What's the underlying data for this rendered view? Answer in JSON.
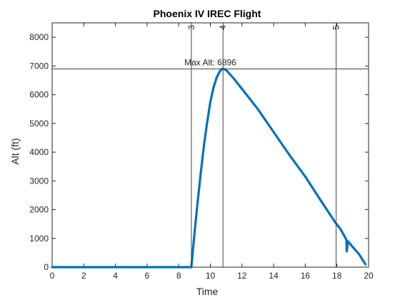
{
  "chart_data": {
    "type": "line",
    "title": "Phoenix IV IREC Flight",
    "xlabel": "Time",
    "ylabel": "Alt (ft)",
    "xlim": [
      0,
      20
    ],
    "ylim": [
      0,
      8500
    ],
    "xticks": [
      0,
      2,
      4,
      6,
      8,
      10,
      12,
      14,
      16,
      18,
      20
    ],
    "yticks": [
      0,
      1000,
      2000,
      3000,
      4000,
      5000,
      6000,
      7000,
      8000
    ],
    "grid": false,
    "legend": "none",
    "colors": {
      "line": "#0072BD",
      "axis": "#262626",
      "event_line": "#444444",
      "background": "#ffffff"
    },
    "series": [
      {
        "values_x": [
          0,
          2,
          4,
          6,
          8,
          8.6,
          8.8,
          9.0,
          9.2,
          9.4,
          9.6,
          9.8,
          10.0,
          10.2,
          10.4,
          10.6,
          10.75,
          10.85,
          11.0,
          11.5,
          12.0,
          13.0,
          14.0,
          15.0,
          16.0,
          17.0,
          17.9,
          18.2,
          18.45,
          18.55,
          18.6,
          18.62,
          18.7,
          19.0,
          19.4,
          19.8
        ],
        "values_y": [
          0,
          0,
          0,
          0,
          0,
          0,
          0,
          1200,
          2300,
          3300,
          4250,
          5050,
          5750,
          6250,
          6600,
          6820,
          6896,
          6896,
          6860,
          6550,
          6200,
          5500,
          4700,
          3900,
          3150,
          2300,
          1550,
          1350,
          1100,
          1000,
          950,
          550,
          900,
          700,
          450,
          100
        ]
      }
    ],
    "max_line": {
      "y": 6896,
      "label": "Max Alt: 6896"
    },
    "event_lines": [
      {
        "x": 8.8,
        "label": "3"
      },
      {
        "x": 10.8,
        "label": "4"
      },
      {
        "x": 17.95,
        "label": "5"
      }
    ]
  }
}
